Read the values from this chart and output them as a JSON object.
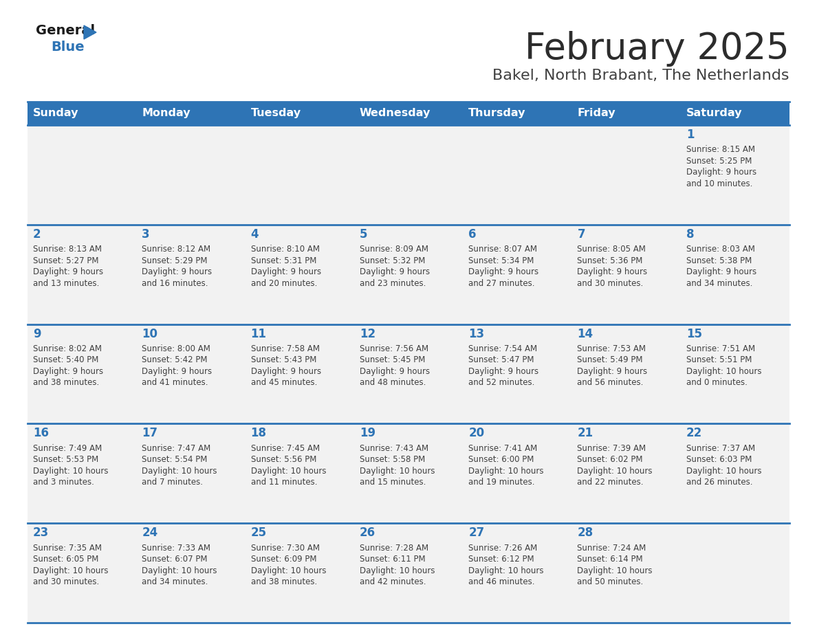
{
  "title": "February 2025",
  "subtitle": "Bakel, North Brabant, The Netherlands",
  "header_bg": "#2E74B5",
  "header_text_color": "#FFFFFF",
  "cell_bg": "#F2F2F2",
  "day_number_color": "#2E74B5",
  "text_color": "#404040",
  "border_color": "#2E74B5",
  "days_of_week": [
    "Sunday",
    "Monday",
    "Tuesday",
    "Wednesday",
    "Thursday",
    "Friday",
    "Saturday"
  ],
  "weeks": [
    [
      {
        "day": null,
        "sunrise": null,
        "sunset": null,
        "daylight": null
      },
      {
        "day": null,
        "sunrise": null,
        "sunset": null,
        "daylight": null
      },
      {
        "day": null,
        "sunrise": null,
        "sunset": null,
        "daylight": null
      },
      {
        "day": null,
        "sunrise": null,
        "sunset": null,
        "daylight": null
      },
      {
        "day": null,
        "sunrise": null,
        "sunset": null,
        "daylight": null
      },
      {
        "day": null,
        "sunrise": null,
        "sunset": null,
        "daylight": null
      },
      {
        "day": 1,
        "sunrise": "8:15 AM",
        "sunset": "5:25 PM",
        "daylight": "9 hours\nand 10 minutes."
      }
    ],
    [
      {
        "day": 2,
        "sunrise": "8:13 AM",
        "sunset": "5:27 PM",
        "daylight": "9 hours\nand 13 minutes."
      },
      {
        "day": 3,
        "sunrise": "8:12 AM",
        "sunset": "5:29 PM",
        "daylight": "9 hours\nand 16 minutes."
      },
      {
        "day": 4,
        "sunrise": "8:10 AM",
        "sunset": "5:31 PM",
        "daylight": "9 hours\nand 20 minutes."
      },
      {
        "day": 5,
        "sunrise": "8:09 AM",
        "sunset": "5:32 PM",
        "daylight": "9 hours\nand 23 minutes."
      },
      {
        "day": 6,
        "sunrise": "8:07 AM",
        "sunset": "5:34 PM",
        "daylight": "9 hours\nand 27 minutes."
      },
      {
        "day": 7,
        "sunrise": "8:05 AM",
        "sunset": "5:36 PM",
        "daylight": "9 hours\nand 30 minutes."
      },
      {
        "day": 8,
        "sunrise": "8:03 AM",
        "sunset": "5:38 PM",
        "daylight": "9 hours\nand 34 minutes."
      }
    ],
    [
      {
        "day": 9,
        "sunrise": "8:02 AM",
        "sunset": "5:40 PM",
        "daylight": "9 hours\nand 38 minutes."
      },
      {
        "day": 10,
        "sunrise": "8:00 AM",
        "sunset": "5:42 PM",
        "daylight": "9 hours\nand 41 minutes."
      },
      {
        "day": 11,
        "sunrise": "7:58 AM",
        "sunset": "5:43 PM",
        "daylight": "9 hours\nand 45 minutes."
      },
      {
        "day": 12,
        "sunrise": "7:56 AM",
        "sunset": "5:45 PM",
        "daylight": "9 hours\nand 48 minutes."
      },
      {
        "day": 13,
        "sunrise": "7:54 AM",
        "sunset": "5:47 PM",
        "daylight": "9 hours\nand 52 minutes."
      },
      {
        "day": 14,
        "sunrise": "7:53 AM",
        "sunset": "5:49 PM",
        "daylight": "9 hours\nand 56 minutes."
      },
      {
        "day": 15,
        "sunrise": "7:51 AM",
        "sunset": "5:51 PM",
        "daylight": "10 hours\nand 0 minutes."
      }
    ],
    [
      {
        "day": 16,
        "sunrise": "7:49 AM",
        "sunset": "5:53 PM",
        "daylight": "10 hours\nand 3 minutes."
      },
      {
        "day": 17,
        "sunrise": "7:47 AM",
        "sunset": "5:54 PM",
        "daylight": "10 hours\nand 7 minutes."
      },
      {
        "day": 18,
        "sunrise": "7:45 AM",
        "sunset": "5:56 PM",
        "daylight": "10 hours\nand 11 minutes."
      },
      {
        "day": 19,
        "sunrise": "7:43 AM",
        "sunset": "5:58 PM",
        "daylight": "10 hours\nand 15 minutes."
      },
      {
        "day": 20,
        "sunrise": "7:41 AM",
        "sunset": "6:00 PM",
        "daylight": "10 hours\nand 19 minutes."
      },
      {
        "day": 21,
        "sunrise": "7:39 AM",
        "sunset": "6:02 PM",
        "daylight": "10 hours\nand 22 minutes."
      },
      {
        "day": 22,
        "sunrise": "7:37 AM",
        "sunset": "6:03 PM",
        "daylight": "10 hours\nand 26 minutes."
      }
    ],
    [
      {
        "day": 23,
        "sunrise": "7:35 AM",
        "sunset": "6:05 PM",
        "daylight": "10 hours\nand 30 minutes."
      },
      {
        "day": 24,
        "sunrise": "7:33 AM",
        "sunset": "6:07 PM",
        "daylight": "10 hours\nand 34 minutes."
      },
      {
        "day": 25,
        "sunrise": "7:30 AM",
        "sunset": "6:09 PM",
        "daylight": "10 hours\nand 38 minutes."
      },
      {
        "day": 26,
        "sunrise": "7:28 AM",
        "sunset": "6:11 PM",
        "daylight": "10 hours\nand 42 minutes."
      },
      {
        "day": 27,
        "sunrise": "7:26 AM",
        "sunset": "6:12 PM",
        "daylight": "10 hours\nand 46 minutes."
      },
      {
        "day": 28,
        "sunrise": "7:24 AM",
        "sunset": "6:14 PM",
        "daylight": "10 hours\nand 50 minutes."
      },
      {
        "day": null,
        "sunrise": null,
        "sunset": null,
        "daylight": null
      }
    ]
  ]
}
